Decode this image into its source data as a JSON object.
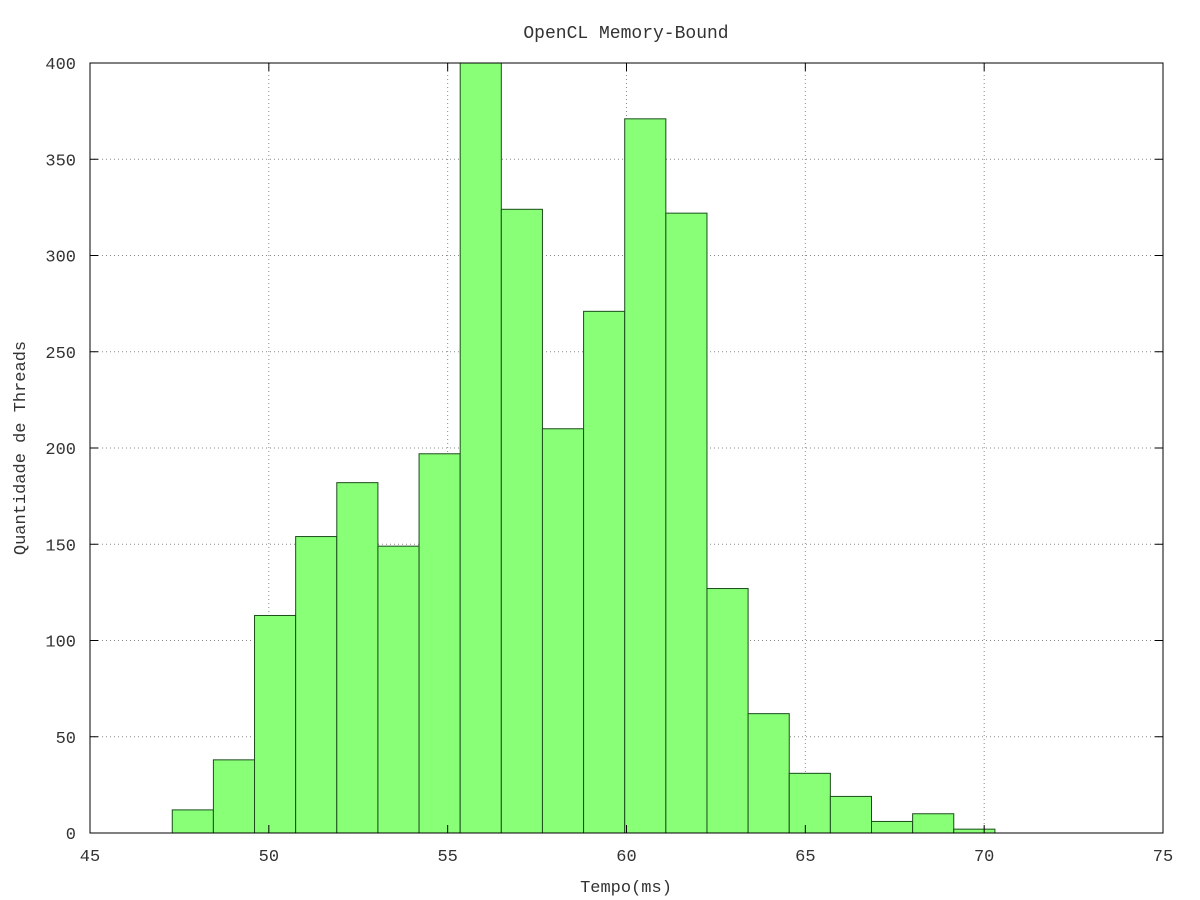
{
  "chart_data": {
    "type": "bar",
    "title": "OpenCL Memory-Bound",
    "xlabel": "Tempo(ms)",
    "ylabel": "Quantidade de Threads",
    "xlim": [
      45,
      75
    ],
    "ylim": [
      0,
      400
    ],
    "xticks": [
      "45",
      "50",
      "55",
      "60",
      "65",
      "70",
      "75"
    ],
    "yticks": [
      "0",
      "50",
      "100",
      "150",
      "200",
      "250",
      "300",
      "350",
      "400"
    ],
    "grid": true,
    "bar_color": "#88ff77",
    "bin_width": 1.15,
    "x": [
      47.3,
      48.45,
      49.6,
      50.75,
      51.9,
      53.05,
      54.2,
      55.35,
      56.5,
      57.65,
      58.8,
      59.95,
      61.1,
      62.25,
      63.4,
      64.55,
      65.7,
      66.85,
      68.0,
      69.15
    ],
    "values": [
      12,
      38,
      113,
      154,
      182,
      149,
      197,
      400,
      324,
      210,
      271,
      371,
      322,
      127,
      62,
      31,
      19,
      6,
      10,
      2
    ]
  }
}
